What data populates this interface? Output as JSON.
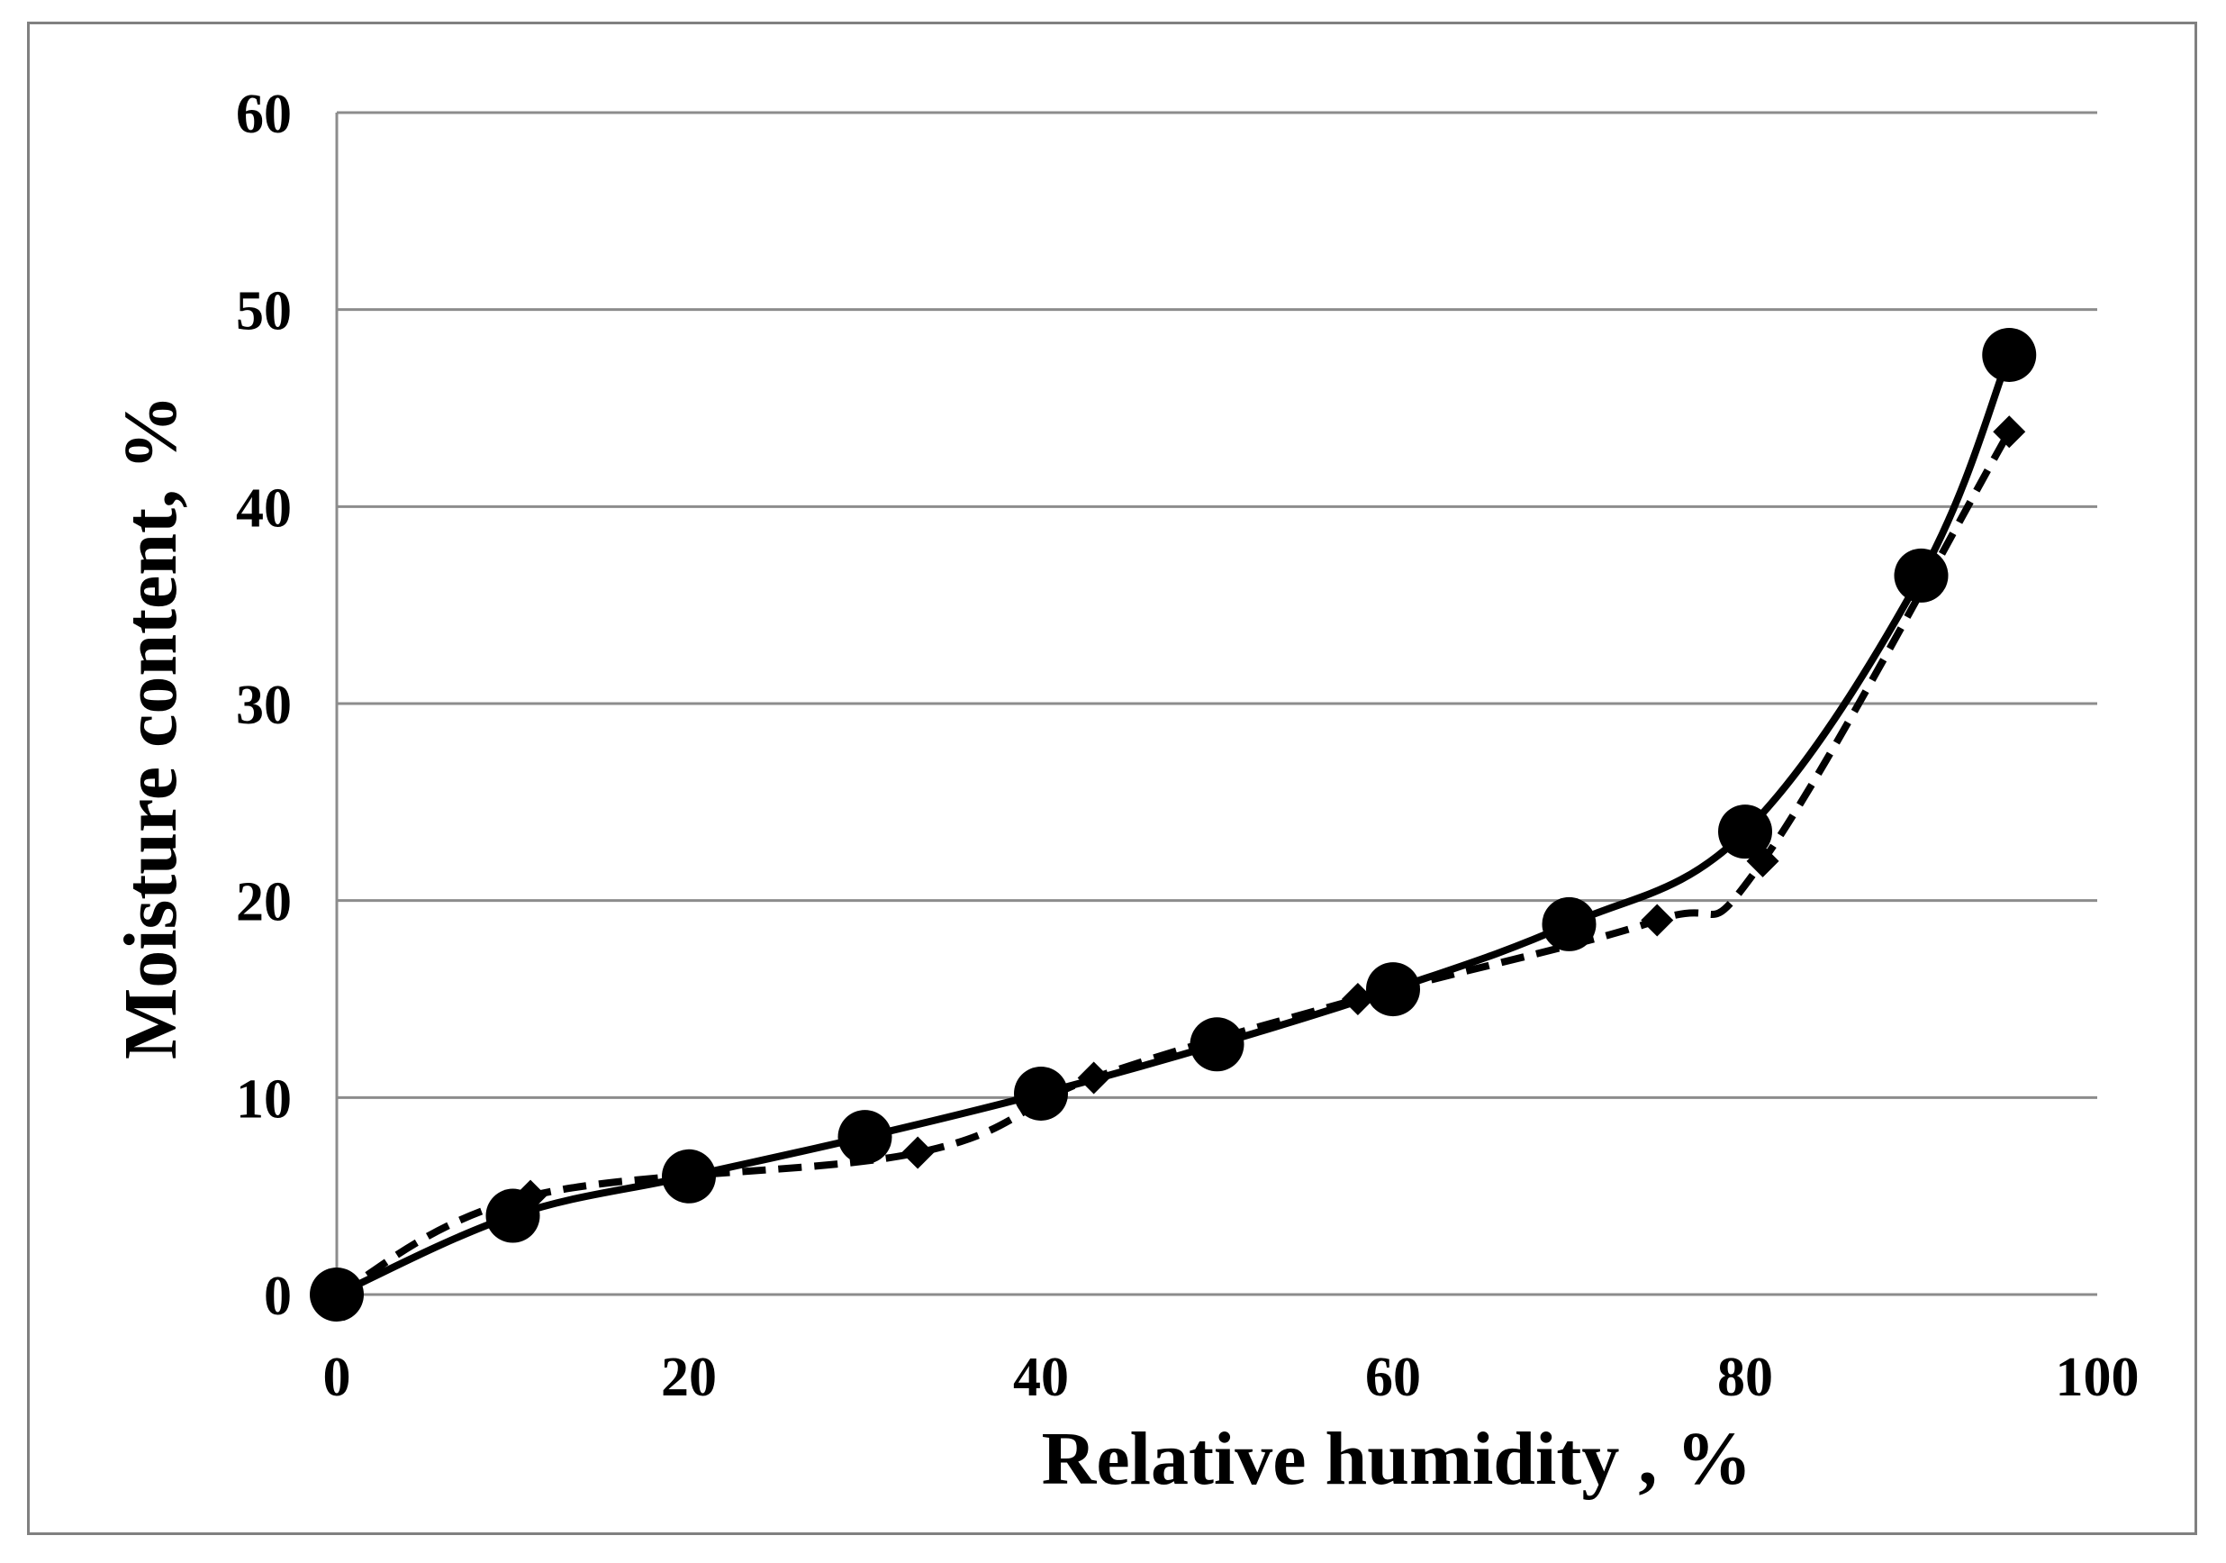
{
  "chart_data": {
    "type": "scatter",
    "xlabel": "Relative humidity , %",
    "ylabel": "Moisture content, %",
    "xlim": [
      0,
      100
    ],
    "ylim": [
      0,
      60
    ],
    "x_ticks": [
      "0",
      "20",
      "40",
      "60",
      "80",
      "100"
    ],
    "y_ticks": [
      "0",
      "10",
      "20",
      "30",
      "40",
      "50",
      "60"
    ],
    "grid": "horizontal",
    "legend": "none",
    "series": [
      {
        "marker": "circle",
        "line": "solid",
        "color": "#000000",
        "x": [
          0,
          10,
          20,
          30,
          40,
          50,
          60,
          70,
          80,
          90,
          95
        ],
        "y": [
          0,
          4.0,
          6.0,
          8.0,
          10.2,
          12.7,
          15.5,
          18.8,
          23.5,
          36.5,
          47.7
        ]
      },
      {
        "marker": "diamond",
        "line": "dashed",
        "color": "#000000",
        "x": [
          11,
          33,
          43,
          58,
          75,
          81,
          95
        ],
        "y": [
          5.0,
          7.2,
          11.0,
          15.0,
          19.0,
          22.0,
          43.8
        ]
      }
    ]
  }
}
